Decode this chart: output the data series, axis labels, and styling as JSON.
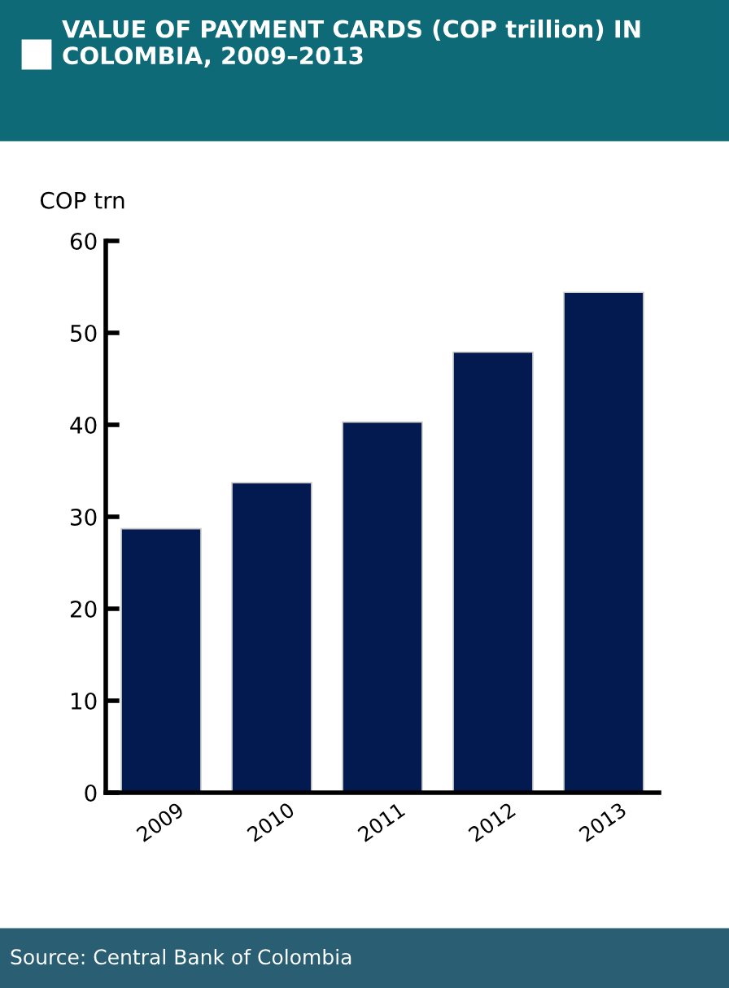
{
  "chart_data": {
    "type": "bar",
    "title": "VALUE OF PAYMENT CARDS (COP trillion) IN COLOMBIA, 2009–2013",
    "ylabel": "COP trn",
    "categories": [
      "2009",
      "2010",
      "2011",
      "2012",
      "2013"
    ],
    "values": [
      28.7,
      33.7,
      40.3,
      47.9,
      54.4
    ],
    "color": "#021a4f",
    "ylim": [
      0,
      60
    ],
    "yticks": [
      0,
      10,
      20,
      30,
      40,
      50,
      60
    ],
    "grid": false,
    "annotations": [
      "Source: Central Bank of Colombia"
    ]
  }
}
